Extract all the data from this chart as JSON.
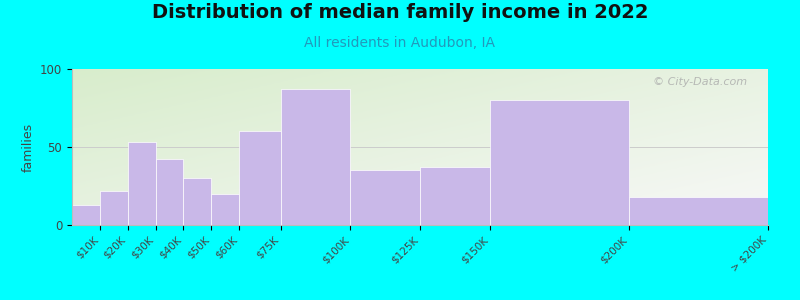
{
  "title": "Distribution of median family income in 2022",
  "subtitle": "All residents in Audubon, IA",
  "ylabel": "families",
  "bar_color": "#c9b8e8",
  "background_color": "#00ffff",
  "title_fontsize": 14,
  "subtitle_fontsize": 10,
  "ylabel_fontsize": 9,
  "tick_fontsize": 7.5,
  "ylim": [
    0,
    100
  ],
  "yticks": [
    0,
    50,
    100
  ],
  "watermark": "© City-Data.com",
  "tick_labels": [
    "$10K",
    "$20K",
    "$30K",
    "$40K",
    "$50K",
    "$60K",
    "$75K",
    "$100K",
    "$125K",
    "$150K",
    "$200K",
    "> $200K"
  ],
  "tick_positions": [
    10,
    20,
    30,
    40,
    50,
    60,
    75,
    100,
    125,
    150,
    200,
    250
  ],
  "bar_lefts": [
    0,
    10,
    20,
    30,
    40,
    50,
    60,
    75,
    100,
    125,
    150,
    200
  ],
  "bar_widths": [
    10,
    10,
    10,
    10,
    10,
    10,
    15,
    25,
    25,
    25,
    50,
    50
  ],
  "bar_heights": [
    13,
    22,
    53,
    42,
    30,
    20,
    60,
    87,
    35,
    37,
    80,
    18
  ]
}
